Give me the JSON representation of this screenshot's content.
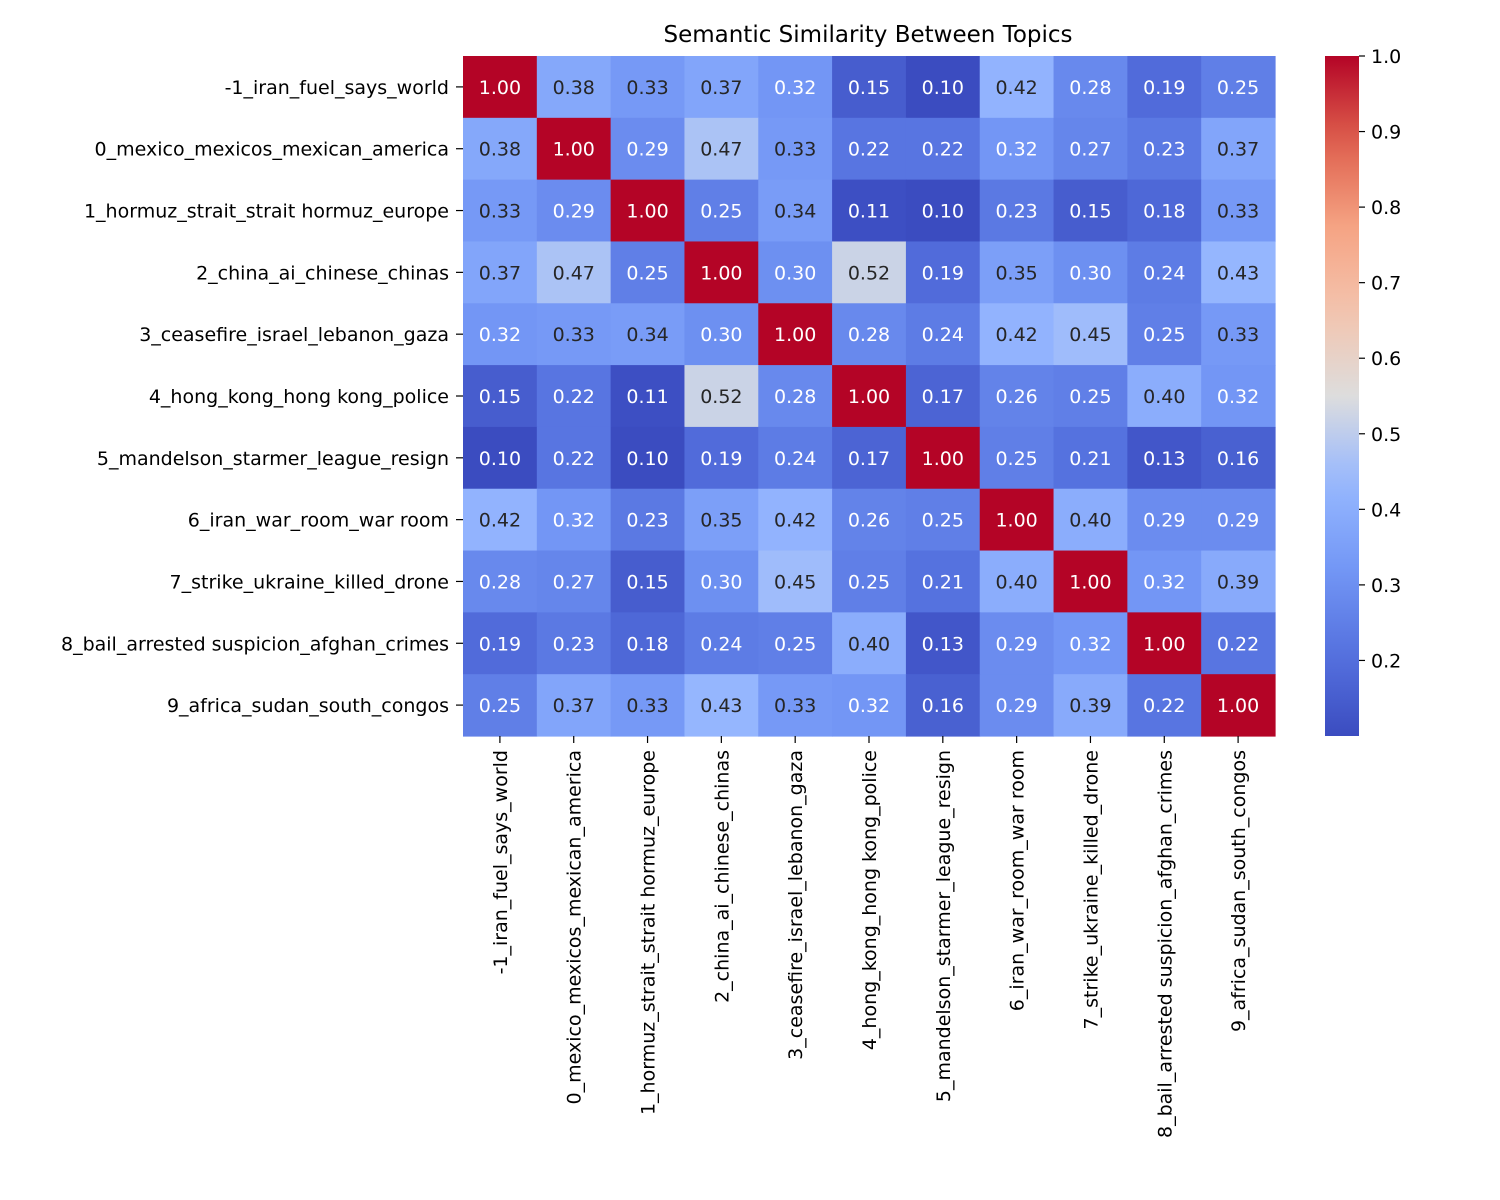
{
  "chart_data": {
    "type": "heatmap",
    "title": "Semantic Similarity Between Topics",
    "xlabel": "",
    "ylabel": "",
    "categories": [
      "-1_iran_fuel_says_world",
      "0_mexico_mexicos_mexican_america",
      "1_hormuz_strait_strait hormuz_europe",
      "2_china_ai_chinese_chinas",
      "3_ceasefire_israel_lebanon_gaza",
      "4_hong_kong_hong kong_police",
      "5_mandelson_starmer_league_resign",
      "6_iran_war_room_war room",
      "7_strike_ukraine_killed_drone",
      "8_bail_arrested suspicion_afghan_crimes",
      "9_africa_sudan_south_congos"
    ],
    "values": [
      [
        1.0,
        0.38,
        0.33,
        0.37,
        0.32,
        0.15,
        0.1,
        0.42,
        0.28,
        0.19,
        0.25
      ],
      [
        0.38,
        1.0,
        0.29,
        0.47,
        0.33,
        0.22,
        0.22,
        0.32,
        0.27,
        0.23,
        0.37
      ],
      [
        0.33,
        0.29,
        1.0,
        0.25,
        0.34,
        0.11,
        0.1,
        0.23,
        0.15,
        0.18,
        0.33
      ],
      [
        0.37,
        0.47,
        0.25,
        1.0,
        0.3,
        0.52,
        0.19,
        0.35,
        0.3,
        0.24,
        0.43
      ],
      [
        0.32,
        0.33,
        0.34,
        0.3,
        1.0,
        0.28,
        0.24,
        0.42,
        0.45,
        0.25,
        0.33
      ],
      [
        0.15,
        0.22,
        0.11,
        0.52,
        0.28,
        1.0,
        0.17,
        0.26,
        0.25,
        0.4,
        0.32
      ],
      [
        0.1,
        0.22,
        0.1,
        0.19,
        0.24,
        0.17,
        1.0,
        0.25,
        0.21,
        0.13,
        0.16
      ],
      [
        0.42,
        0.32,
        0.23,
        0.35,
        0.42,
        0.26,
        0.25,
        1.0,
        0.4,
        0.29,
        0.29
      ],
      [
        0.28,
        0.27,
        0.15,
        0.3,
        0.45,
        0.25,
        0.21,
        0.4,
        1.0,
        0.32,
        0.39
      ],
      [
        0.19,
        0.23,
        0.18,
        0.24,
        0.25,
        0.4,
        0.13,
        0.29,
        0.32,
        1.0,
        0.22
      ],
      [
        0.25,
        0.37,
        0.33,
        0.43,
        0.33,
        0.32,
        0.16,
        0.29,
        0.39,
        0.22,
        1.0
      ]
    ],
    "colorscale": "coolwarm",
    "vmin": 0.1,
    "vmax": 1.0,
    "colorbar_ticks": [
      "0.2",
      "0.3",
      "0.4",
      "0.5",
      "0.6",
      "0.7",
      "0.8",
      "0.9",
      "1.0"
    ],
    "annotations_format": "2 decimals",
    "grid": false,
    "legend": "colorbar-right"
  }
}
